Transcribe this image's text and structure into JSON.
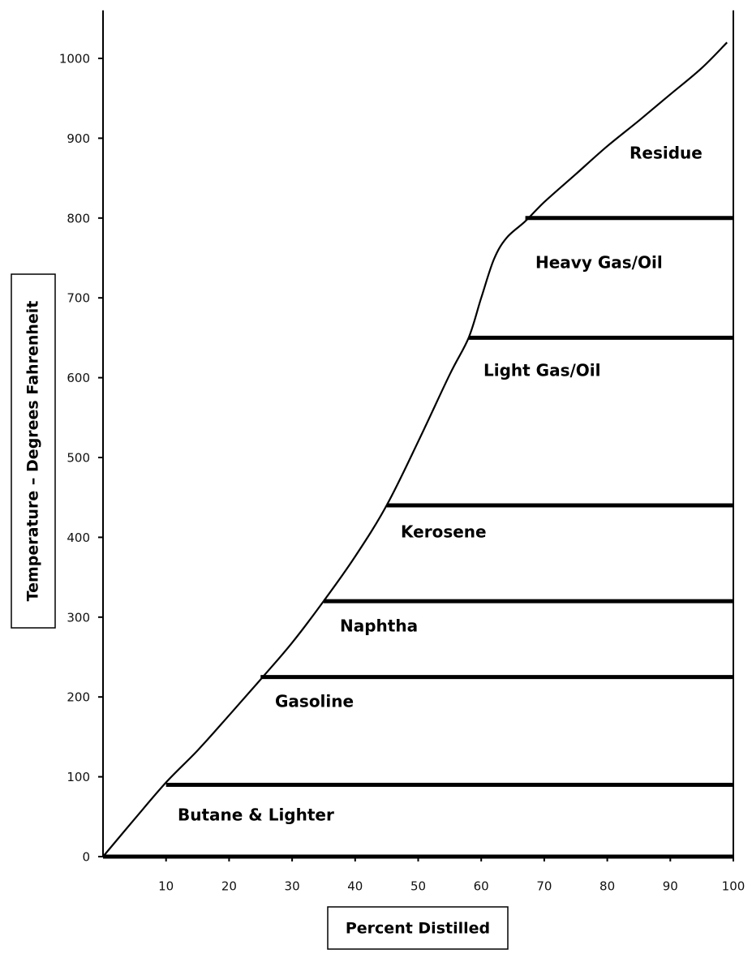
{
  "chart_data": {
    "type": "line",
    "title": "",
    "xlabel": "Percent Distilled",
    "ylabel": "Temperature – Degrees  Fahrenheit",
    "xlim": [
      0,
      100
    ],
    "ylim": [
      0,
      1050
    ],
    "x_ticks": [
      10,
      20,
      30,
      40,
      50,
      60,
      70,
      80,
      90,
      100
    ],
    "y_ticks": [
      0,
      100,
      200,
      300,
      400,
      500,
      600,
      700,
      800,
      900,
      1000
    ],
    "grid": false,
    "series": [
      {
        "x": [
          0,
          5,
          10,
          15,
          20,
          25,
          30,
          35,
          40,
          45,
          50,
          55,
          58,
          60,
          62,
          64,
          67,
          70,
          75,
          80,
          85,
          90,
          95,
          99
        ],
        "y": [
          0,
          47,
          93,
          133,
          177,
          222,
          268,
          320,
          376,
          440,
          520,
          604,
          650,
          700,
          748,
          775,
          796,
          820,
          855,
          890,
          922,
          955,
          988,
          1020
        ]
      }
    ],
    "fractions": [
      {
        "label": "Butane & Lighter",
        "cut_temp": 90,
        "line_start_pct": 10
      },
      {
        "label": "Gasoline",
        "cut_temp": 225,
        "line_start_pct": 25
      },
      {
        "label": "Naphtha",
        "cut_temp": 320,
        "line_start_pct": 35
      },
      {
        "label": "Kerosene",
        "cut_temp": 440,
        "line_start_pct": 45
      },
      {
        "label": "Light Gas/Oil",
        "cut_temp": 650,
        "line_start_pct": 58
      },
      {
        "label": "Heavy Gas/Oil",
        "cut_temp": 800,
        "line_start_pct": 67
      },
      {
        "label": "Residue",
        "cut_temp": null,
        "line_start_pct": null
      }
    ]
  }
}
